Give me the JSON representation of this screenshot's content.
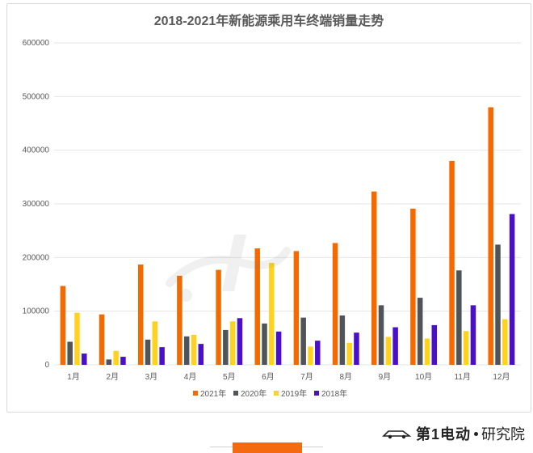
{
  "brand": {
    "name": "第1电动",
    "suffix": "研究院"
  },
  "colors": {
    "s2021": "#f56a00",
    "s2020": "#4f5459",
    "s2019": "#ffd21f",
    "s2018": "#4a10c8"
  },
  "chart_data": {
    "type": "bar",
    "title": "2018-2021年新能源乘用车终端销量走势",
    "categories": [
      "1月",
      "2月",
      "3月",
      "4月",
      "5月",
      "6月",
      "7月",
      "8月",
      "9月",
      "10月",
      "11月",
      "12月"
    ],
    "series": [
      {
        "name": "2021年",
        "values": [
          147000,
          94000,
          187000,
          166000,
          177000,
          217000,
          212000,
          227000,
          323000,
          291000,
          380000,
          480000
        ]
      },
      {
        "name": "2020年",
        "values": [
          43000,
          10000,
          47000,
          53000,
          65000,
          77000,
          88000,
          92000,
          111000,
          125000,
          176000,
          224000
        ]
      },
      {
        "name": "2019年",
        "values": [
          97000,
          26000,
          81000,
          56000,
          81000,
          190000,
          34000,
          41000,
          52000,
          49000,
          63000,
          85000
        ]
      },
      {
        "name": "2018年",
        "values": [
          21000,
          15000,
          33000,
          39000,
          87000,
          62000,
          45000,
          60000,
          70000,
          74000,
          111000,
          281000
        ]
      }
    ],
    "y_ticks": [
      "0",
      "100000",
      "200000",
      "300000",
      "400000",
      "500000",
      "600000"
    ],
    "ylim": [
      0,
      600000
    ],
    "grid": true,
    "legend_position": "bottom-center"
  }
}
